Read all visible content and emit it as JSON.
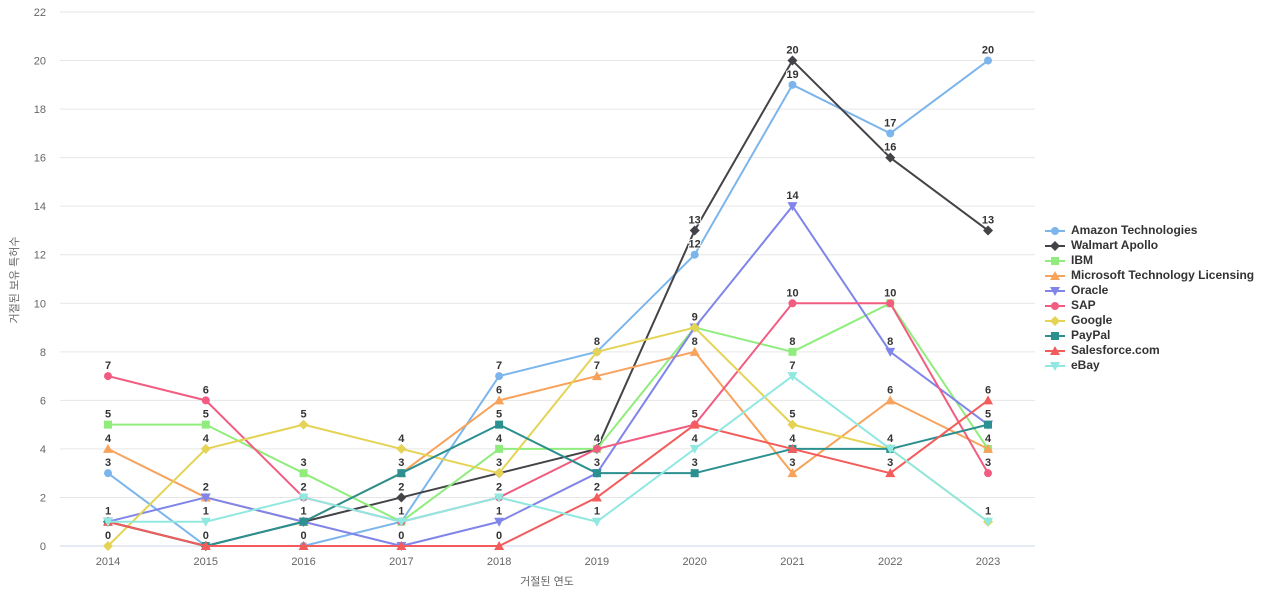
{
  "chart_data": {
    "type": "line",
    "title": "",
    "xlabel": "거절된 연도",
    "ylabel": "거절된 보유 특허수",
    "ylim": [
      0,
      22
    ],
    "y_tick_step": 2,
    "grid": true,
    "legend_position": "right",
    "categories": [
      "2014",
      "2015",
      "2016",
      "2017",
      "2018",
      "2019",
      "2020",
      "2021",
      "2022",
      "2023"
    ],
    "series": [
      {
        "name": "Amazon Technologies",
        "color": "#7cb5ec",
        "marker": "circle",
        "values": [
          3,
          0,
          0,
          1,
          7,
          8,
          12,
          19,
          17,
          20
        ]
      },
      {
        "name": "Walmart Apollo",
        "color": "#434348",
        "marker": "diamond",
        "values": [
          1,
          0,
          1,
          2,
          3,
          4,
          13,
          20,
          16,
          13
        ]
      },
      {
        "name": "IBM",
        "color": "#90ed7d",
        "marker": "square",
        "values": [
          5,
          5,
          3,
          1,
          4,
          4,
          9,
          8,
          10,
          4
        ]
      },
      {
        "name": "Microsoft Technology Licensing",
        "color": "#f7a35c",
        "marker": "triangle",
        "values": [
          4,
          2,
          1,
          3,
          6,
          7,
          8,
          3,
          6,
          4
        ]
      },
      {
        "name": "Oracle",
        "color": "#8085e9",
        "marker": "triangle-down",
        "values": [
          1,
          2,
          1,
          0,
          1,
          3,
          9,
          14,
          8,
          5
        ]
      },
      {
        "name": "SAP",
        "color": "#f15c80",
        "marker": "circle",
        "values": [
          7,
          6,
          2,
          1,
          2,
          4,
          5,
          10,
          10,
          3
        ]
      },
      {
        "name": "Google",
        "color": "#e4d354",
        "marker": "diamond",
        "values": [
          0,
          4,
          5,
          4,
          3,
          8,
          9,
          5,
          4,
          1
        ]
      },
      {
        "name": "PayPal",
        "color": "#2b908f",
        "marker": "square",
        "values": [
          1,
          0,
          1,
          3,
          5,
          3,
          3,
          4,
          4,
          5
        ]
      },
      {
        "name": "Salesforce.com",
        "color": "#f45b5b",
        "marker": "triangle",
        "values": [
          1,
          0,
          0,
          0,
          0,
          2,
          5,
          4,
          3,
          6
        ]
      },
      {
        "name": "eBay",
        "color": "#91e8e1",
        "marker": "triangle-down",
        "values": [
          1,
          1,
          2,
          1,
          2,
          1,
          4,
          7,
          4,
          1
        ]
      }
    ],
    "colors": {
      "grid_line": "#e6e6e6",
      "axis_line": "#ccd6eb",
      "tick_label": "#666666",
      "data_label": "#333333",
      "legend_label": "#333333"
    }
  }
}
